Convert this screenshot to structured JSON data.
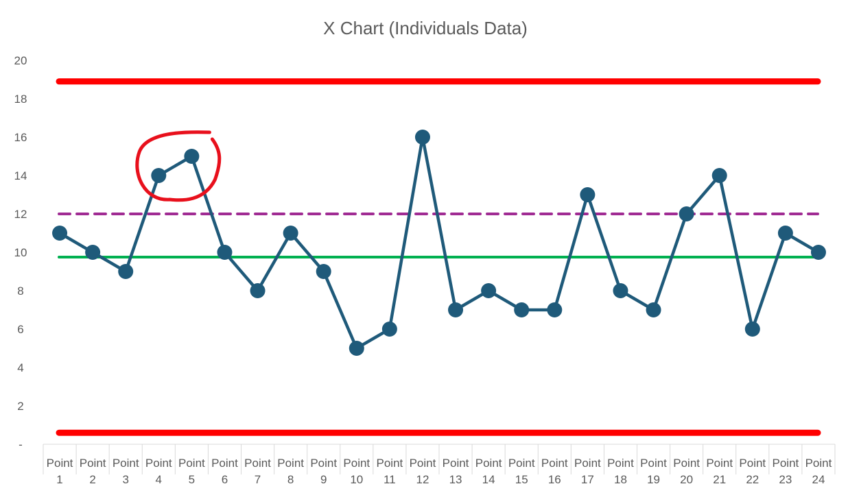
{
  "chart_data": {
    "type": "line",
    "title": "X Chart (Individuals Data)",
    "xlabel": "",
    "ylabel": "",
    "ylim": [
      0,
      20
    ],
    "y_ticks": [
      {
        "value": 0,
        "label": "-"
      },
      {
        "value": 2,
        "label": "2"
      },
      {
        "value": 4,
        "label": "4"
      },
      {
        "value": 6,
        "label": "6"
      },
      {
        "value": 8,
        "label": "8"
      },
      {
        "value": 10,
        "label": "10"
      },
      {
        "value": 12,
        "label": "12"
      },
      {
        "value": 14,
        "label": "14"
      },
      {
        "value": 16,
        "label": "16"
      },
      {
        "value": 18,
        "label": "18"
      },
      {
        "value": 20,
        "label": "20"
      }
    ],
    "categories": [
      [
        "Point",
        "1"
      ],
      [
        "Point",
        "2"
      ],
      [
        "Point",
        "3"
      ],
      [
        "Point",
        "4"
      ],
      [
        "Point",
        "5"
      ],
      [
        "Point",
        "6"
      ],
      [
        "Point",
        "7"
      ],
      [
        "Point",
        "8"
      ],
      [
        "Point",
        "9"
      ],
      [
        "Point",
        "10"
      ],
      [
        "Point",
        "11"
      ],
      [
        "Point",
        "12"
      ],
      [
        "Point",
        "13"
      ],
      [
        "Point",
        "14"
      ],
      [
        "Point",
        "15"
      ],
      [
        "Point",
        "16"
      ],
      [
        "Point",
        "17"
      ],
      [
        "Point",
        "18"
      ],
      [
        "Point",
        "19"
      ],
      [
        "Point",
        "20"
      ],
      [
        "Point",
        "21"
      ],
      [
        "Point",
        "22"
      ],
      [
        "Point",
        "23"
      ],
      [
        "Point",
        "24"
      ]
    ],
    "series": [
      {
        "values": [
          11,
          10,
          9,
          14,
          15,
          10,
          8,
          11,
          9,
          5,
          6,
          16,
          7,
          8,
          7,
          7,
          13,
          8,
          7,
          12,
          14,
          6,
          11,
          10
        ],
        "color": "#1f5a7a",
        "marker": "circle"
      }
    ],
    "reference_lines": [
      {
        "value": 18.9,
        "color": "#ff0000",
        "style": "solid"
      },
      {
        "value": 0.6,
        "color": "#ff0000",
        "style": "solid"
      },
      {
        "value": 12.0,
        "color": "#a02b93",
        "style": "dashed"
      },
      {
        "value": 9.75,
        "color": "#00b050",
        "style": "solid"
      }
    ],
    "annotations": [
      {
        "type": "freehand-circle",
        "color": "#e8101c",
        "around_points": [
          4,
          5
        ]
      }
    ],
    "grid": false,
    "legend": "none"
  }
}
